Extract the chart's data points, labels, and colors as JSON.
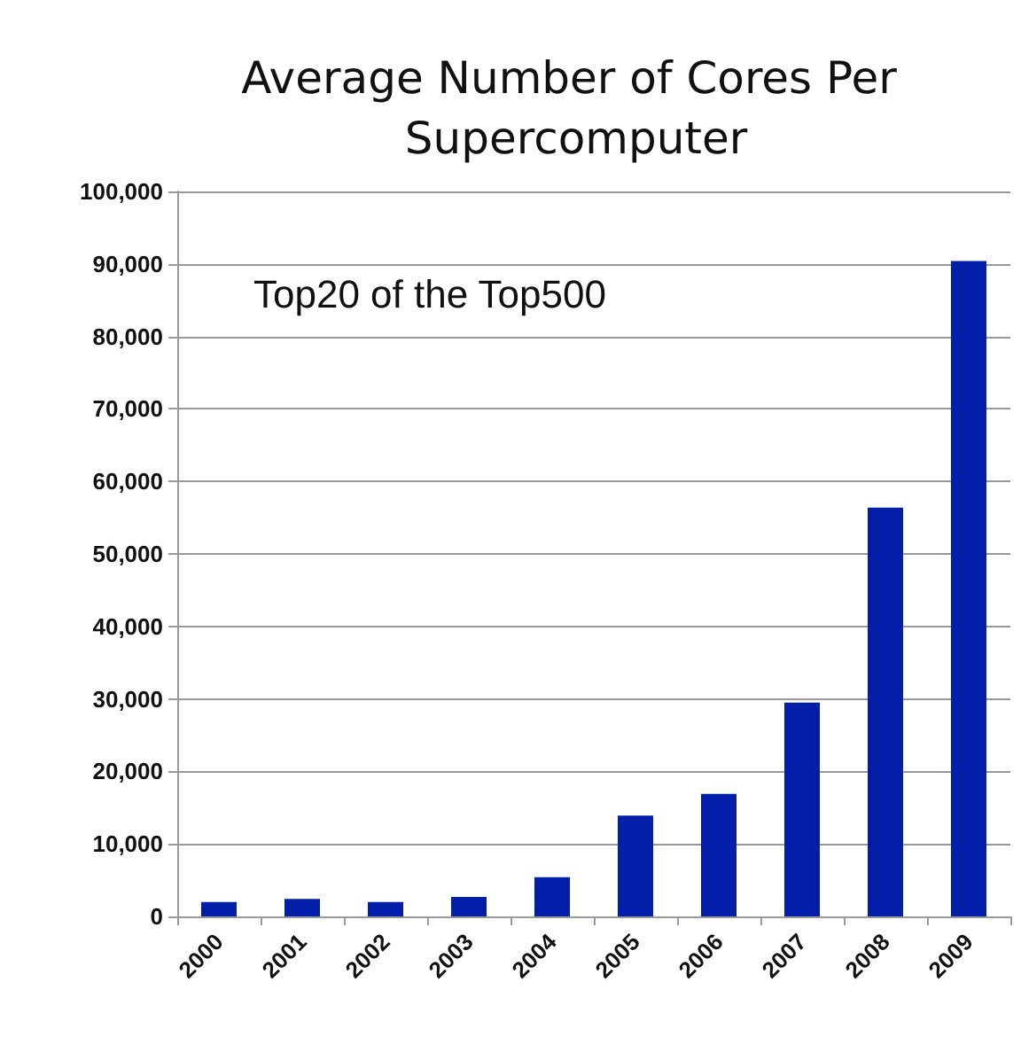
{
  "chart_data": {
    "type": "bar",
    "title": "Average Number of Cores Per Supercomputer",
    "annotations": [
      "Top20 of the Top500"
    ],
    "categories": [
      "2000",
      "2001",
      "2002",
      "2003",
      "2004",
      "2005",
      "2006",
      "2007",
      "2008",
      "2009"
    ],
    "values": [
      2000,
      2400,
      2000,
      2700,
      5400,
      13900,
      16900,
      29500,
      56400,
      90400
    ],
    "color": "#031ea8",
    "ylim": [
      0,
      100000
    ],
    "yticks": [
      0,
      {
        "value": 10000,
        "label": "10,000"
      },
      {
        "value": 20000,
        "label": "20,000"
      },
      {
        "value": 30000,
        "label": "30,000"
      },
      {
        "value": 40000,
        "label": "40,000"
      },
      {
        "value": 50000,
        "label": "50,000"
      },
      {
        "value": 60000,
        "label": "60,000"
      },
      {
        "value": 70000,
        "label": "70,000"
      },
      {
        "value": 80000,
        "label": "80,000"
      },
      {
        "value": 90000,
        "label": "90,000"
      },
      {
        "value": 100000,
        "label": "100,000"
      }
    ],
    "grid": "y"
  }
}
